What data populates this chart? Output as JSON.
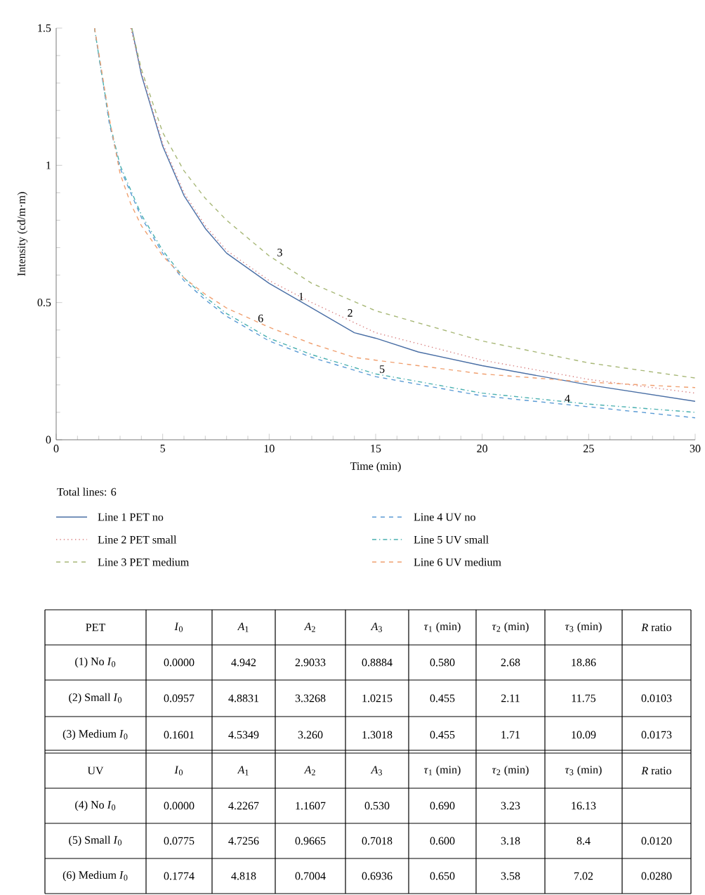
{
  "chart_data": {
    "type": "line",
    "xlabel": "Time (min)",
    "ylabel": "Intensity (cd/m·m)",
    "xlim": [
      0,
      30
    ],
    "ylim": [
      0,
      1.5
    ],
    "xticks": [
      0,
      5,
      10,
      15,
      20,
      25,
      30
    ],
    "yticks": [
      0,
      0.5,
      1,
      1.5
    ],
    "legend": "bottom",
    "legend_title": "Total lines: 6",
    "series": [
      {
        "name": "Line 1 PET no",
        "color": "#4a6fa5",
        "line_style": "solid",
        "x": [
          3.55,
          4,
          5,
          6,
          7,
          8,
          10,
          12,
          14,
          15,
          17,
          20,
          25,
          30
        ],
        "values": [
          1.5,
          1.33,
          1.07,
          0.89,
          0.77,
          0.68,
          0.57,
          0.48,
          0.39,
          0.37,
          0.32,
          0.27,
          0.2,
          0.14
        ]
      },
      {
        "name": "Line 2 PET small",
        "color": "#d98080",
        "line_style": "dotted",
        "x": [
          3.5,
          4,
          5,
          6,
          7,
          8,
          10,
          12,
          15,
          20,
          25,
          30
        ],
        "values": [
          1.5,
          1.34,
          1.08,
          0.9,
          0.78,
          0.69,
          0.58,
          0.5,
          0.39,
          0.29,
          0.22,
          0.17
        ]
      },
      {
        "name": "Line 3 PET medium",
        "color": "#a8b878",
        "line_style": "dashed",
        "x": [
          3.55,
          4,
          5,
          6,
          7,
          8,
          10,
          12,
          15,
          20,
          25,
          30
        ],
        "values": [
          1.5,
          1.35,
          1.12,
          0.98,
          0.88,
          0.8,
          0.67,
          0.57,
          0.47,
          0.36,
          0.28,
          0.225
        ]
      },
      {
        "name": "Line 4 UV no",
        "color": "#5b9bd5",
        "line_style": "dashed",
        "x": [
          1.8,
          2,
          2.5,
          3,
          3.5,
          4,
          5,
          6,
          7,
          8,
          10,
          12,
          15,
          20,
          25,
          30
        ],
        "values": [
          1.5,
          1.4,
          1.15,
          0.99,
          0.9,
          0.81,
          0.68,
          0.58,
          0.51,
          0.45,
          0.36,
          0.3,
          0.23,
          0.16,
          0.12,
          0.08
        ]
      },
      {
        "name": "Line 5 UV small",
        "color": "#4ab0b0",
        "line_style": "dashdot",
        "x": [
          1.8,
          2,
          2.5,
          3,
          3.5,
          4,
          5,
          6,
          7,
          8,
          10,
          12,
          15,
          20,
          25,
          30
        ],
        "values": [
          1.5,
          1.4,
          1.16,
          1.0,
          0.91,
          0.82,
          0.69,
          0.59,
          0.52,
          0.46,
          0.37,
          0.31,
          0.24,
          0.17,
          0.13,
          0.1
        ]
      },
      {
        "name": "Line 6 UV medium",
        "color": "#f0a070",
        "line_style": "dashed",
        "x": [
          1.8,
          2,
          2.5,
          3,
          3.5,
          4,
          5,
          6,
          7,
          8,
          10,
          12,
          14,
          15,
          20,
          25,
          30
        ],
        "values": [
          1.5,
          1.41,
          1.17,
          0.97,
          0.86,
          0.78,
          0.67,
          0.59,
          0.53,
          0.48,
          0.41,
          0.35,
          0.3,
          0.29,
          0.24,
          0.21,
          0.19
        ]
      }
    ],
    "annotations": [
      {
        "text": "1",
        "x": 11.5,
        "y": 0.5
      },
      {
        "text": "2",
        "x": 13.8,
        "y": 0.44
      },
      {
        "text": "3",
        "x": 10.5,
        "y": 0.66
      },
      {
        "text": "4",
        "x": 24,
        "y": 0.128
      },
      {
        "text": "5",
        "x": 15.3,
        "y": 0.235
      },
      {
        "text": "6",
        "x": 9.6,
        "y": 0.42
      },
      "PET",
      "*I*$_{0}$",
      "*A*$_{1}$",
      "*A*$_{2}$",
      "*A*$_{3}$",
      "*τ*$_{1}$ (min)",
      "*τ*$_{2}$ (min)",
      "*τ*$_{3}$ (min)",
      "*R* ratio",
      "(1) No *I*$_{0}$",
      "0.0000",
      "4.942",
      "2.9033",
      "0.8884",
      "0.580",
      "2.68",
      "18.86",
      "(2) Small *I*$_{0}$",
      "0.0957",
      "4.8831",
      "3.3268",
      "1.0215",
      "0.455",
      "2.11",
      "11.75",
      "0.0103",
      "(3) Medium *I*$_{0}$",
      "0.1601",
      "4.5349",
      "3.260",
      "1.3018",
      "0.455",
      "1.71",
      "10.09",
      "0.0173",
      "UV",
      "*I*$_{0}$",
      "*A*$_{1}$",
      "*A*$_{2}$",
      "*A*$_{3}$",
      "*τ*$_{1}$ (min)",
      "*τ*$_{2}$ (min)",
      "*τ*$_{3}$ (min)",
      "*R* ratio",
      "(4) No *I*$_{0}$",
      "0.0000",
      "4.2267",
      "1.1607",
      "0.530",
      "0.690",
      "3.23",
      "16.13",
      "(5) Small *I*$_{0}$",
      "0.0775",
      "4.7256",
      "0.9665",
      "0.7018",
      "0.600",
      "3.18",
      "8.4",
      "0.0120",
      "(6) Medium *I*$_{0}$",
      "0.1774",
      "4.818",
      "0.7004",
      "0.6936",
      "0.650",
      "3.58",
      "7.02",
      "0.0280"
    ]
  }
}
